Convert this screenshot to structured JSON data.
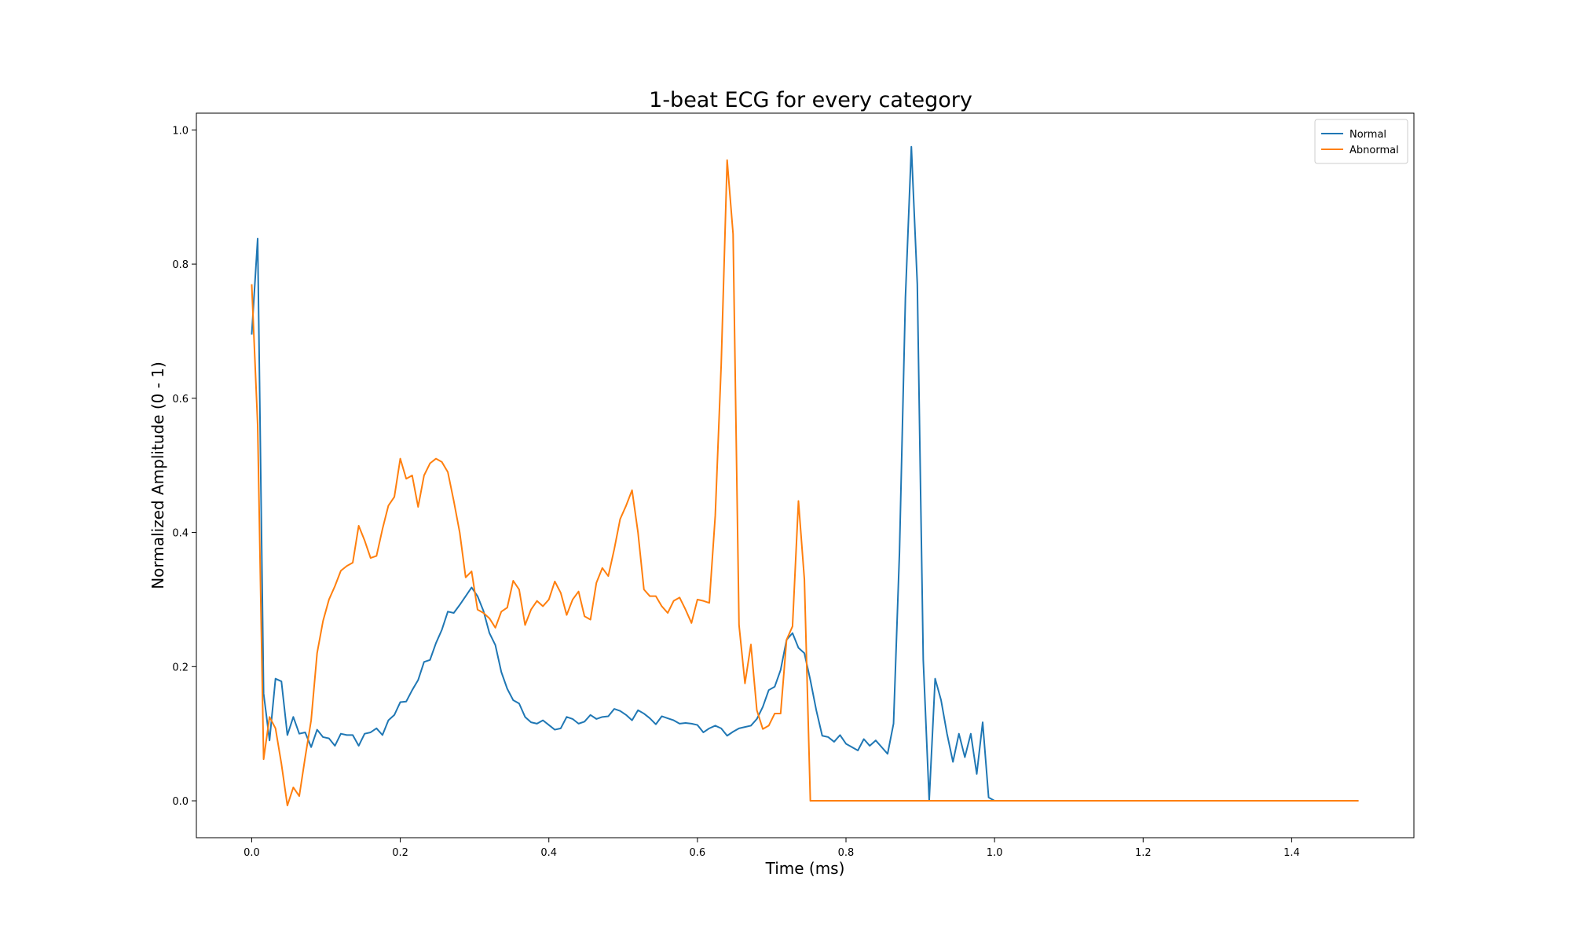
{
  "chart_data": {
    "type": "line",
    "title": "1-beat ECG for every category",
    "xlabel": "Time (ms)",
    "ylabel": "Normalized Amplitude (0 - 1)",
    "xlim": [
      -0.0745,
      1.5645
    ],
    "ylim": [
      -0.055,
      1.025
    ],
    "xticks": [
      0.0,
      0.2,
      0.4,
      0.6,
      0.8,
      1.0,
      1.2,
      1.4
    ],
    "xtick_labels": [
      "0.0",
      "0.2",
      "0.4",
      "0.6",
      "0.8",
      "1.0",
      "1.2",
      "1.4"
    ],
    "yticks": [
      0.0,
      0.2,
      0.4,
      0.6,
      0.8,
      1.0
    ],
    "ytick_labels": [
      "0.0",
      "0.2",
      "0.4",
      "0.6",
      "0.8",
      "1.0"
    ],
    "grid": false,
    "legend_position": "top-right",
    "series": [
      {
        "name": "Normal",
        "color": "#1f77b4",
        "points": [
          [
            0.0,
            0.695
          ],
          [
            0.008,
            0.838
          ],
          [
            0.016,
            0.16
          ],
          [
            0.024,
            0.09
          ],
          [
            0.032,
            0.182
          ],
          [
            0.04,
            0.178
          ],
          [
            0.048,
            0.098
          ],
          [
            0.056,
            0.125
          ],
          [
            0.064,
            0.1
          ],
          [
            0.072,
            0.102
          ],
          [
            0.08,
            0.08
          ],
          [
            0.088,
            0.106
          ],
          [
            0.096,
            0.095
          ],
          [
            0.104,
            0.093
          ],
          [
            0.112,
            0.082
          ],
          [
            0.12,
            0.1
          ],
          [
            0.128,
            0.098
          ],
          [
            0.136,
            0.098
          ],
          [
            0.144,
            0.082
          ],
          [
            0.152,
            0.1
          ],
          [
            0.16,
            0.102
          ],
          [
            0.168,
            0.108
          ],
          [
            0.176,
            0.098
          ],
          [
            0.184,
            0.12
          ],
          [
            0.192,
            0.128
          ],
          [
            0.2,
            0.147
          ],
          [
            0.208,
            0.148
          ],
          [
            0.216,
            0.165
          ],
          [
            0.224,
            0.18
          ],
          [
            0.232,
            0.207
          ],
          [
            0.24,
            0.21
          ],
          [
            0.248,
            0.235
          ],
          [
            0.256,
            0.255
          ],
          [
            0.264,
            0.282
          ],
          [
            0.272,
            0.28
          ],
          [
            0.28,
            0.292
          ],
          [
            0.288,
            0.305
          ],
          [
            0.296,
            0.318
          ],
          [
            0.304,
            0.305
          ],
          [
            0.312,
            0.283
          ],
          [
            0.32,
            0.25
          ],
          [
            0.328,
            0.232
          ],
          [
            0.336,
            0.192
          ],
          [
            0.344,
            0.167
          ],
          [
            0.352,
            0.15
          ],
          [
            0.36,
            0.145
          ],
          [
            0.368,
            0.125
          ],
          [
            0.376,
            0.117
          ],
          [
            0.384,
            0.115
          ],
          [
            0.392,
            0.12
          ],
          [
            0.4,
            0.113
          ],
          [
            0.408,
            0.106
          ],
          [
            0.416,
            0.108
          ],
          [
            0.424,
            0.125
          ],
          [
            0.432,
            0.122
          ],
          [
            0.44,
            0.115
          ],
          [
            0.448,
            0.118
          ],
          [
            0.456,
            0.128
          ],
          [
            0.464,
            0.122
          ],
          [
            0.472,
            0.125
          ],
          [
            0.48,
            0.126
          ],
          [
            0.488,
            0.137
          ],
          [
            0.496,
            0.134
          ],
          [
            0.504,
            0.128
          ],
          [
            0.512,
            0.12
          ],
          [
            0.52,
            0.135
          ],
          [
            0.528,
            0.13
          ],
          [
            0.536,
            0.123
          ],
          [
            0.544,
            0.114
          ],
          [
            0.552,
            0.126
          ],
          [
            0.56,
            0.123
          ],
          [
            0.568,
            0.12
          ],
          [
            0.576,
            0.115
          ],
          [
            0.584,
            0.116
          ],
          [
            0.592,
            0.115
          ],
          [
            0.6,
            0.113
          ],
          [
            0.608,
            0.102
          ],
          [
            0.616,
            0.108
          ],
          [
            0.624,
            0.112
          ],
          [
            0.632,
            0.108
          ],
          [
            0.64,
            0.097
          ],
          [
            0.648,
            0.103
          ],
          [
            0.656,
            0.108
          ],
          [
            0.664,
            0.11
          ],
          [
            0.672,
            0.112
          ],
          [
            0.68,
            0.122
          ],
          [
            0.688,
            0.14
          ],
          [
            0.696,
            0.165
          ],
          [
            0.704,
            0.17
          ],
          [
            0.712,
            0.195
          ],
          [
            0.72,
            0.24
          ],
          [
            0.728,
            0.25
          ],
          [
            0.736,
            0.228
          ],
          [
            0.744,
            0.22
          ],
          [
            0.752,
            0.18
          ],
          [
            0.76,
            0.135
          ],
          [
            0.768,
            0.097
          ],
          [
            0.776,
            0.095
          ],
          [
            0.784,
            0.088
          ],
          [
            0.792,
            0.098
          ],
          [
            0.8,
            0.085
          ],
          [
            0.808,
            0.08
          ],
          [
            0.816,
            0.075
          ],
          [
            0.824,
            0.092
          ],
          [
            0.832,
            0.082
          ],
          [
            0.84,
            0.09
          ],
          [
            0.848,
            0.08
          ],
          [
            0.856,
            0.07
          ],
          [
            0.864,
            0.115
          ],
          [
            0.872,
            0.37
          ],
          [
            0.88,
            0.75
          ],
          [
            0.888,
            0.975
          ],
          [
            0.896,
            0.77
          ],
          [
            0.904,
            0.21
          ],
          [
            0.912,
            0.0
          ],
          [
            0.92,
            0.182
          ],
          [
            0.928,
            0.15
          ],
          [
            0.936,
            0.1
          ],
          [
            0.944,
            0.058
          ],
          [
            0.952,
            0.1
          ],
          [
            0.96,
            0.065
          ],
          [
            0.968,
            0.1
          ],
          [
            0.976,
            0.04
          ],
          [
            0.984,
            0.117
          ],
          [
            0.992,
            0.005
          ],
          [
            1.0,
            0.0
          ],
          [
            1.1,
            0.0
          ],
          [
            1.2,
            0.0
          ],
          [
            1.3,
            0.0
          ],
          [
            1.4,
            0.0
          ],
          [
            1.49,
            0.0
          ]
        ]
      },
      {
        "name": "Abnormal",
        "color": "#ff7f0e",
        "points": [
          [
            0.0,
            0.77
          ],
          [
            0.008,
            0.56
          ],
          [
            0.016,
            0.062
          ],
          [
            0.024,
            0.125
          ],
          [
            0.032,
            0.108
          ],
          [
            0.04,
            0.055
          ],
          [
            0.048,
            -0.007
          ],
          [
            0.056,
            0.02
          ],
          [
            0.064,
            0.007
          ],
          [
            0.072,
            0.065
          ],
          [
            0.08,
            0.12
          ],
          [
            0.088,
            0.22
          ],
          [
            0.096,
            0.268
          ],
          [
            0.104,
            0.3
          ],
          [
            0.112,
            0.32
          ],
          [
            0.12,
            0.343
          ],
          [
            0.128,
            0.35
          ],
          [
            0.136,
            0.355
          ],
          [
            0.144,
            0.41
          ],
          [
            0.152,
            0.388
          ],
          [
            0.16,
            0.362
          ],
          [
            0.168,
            0.365
          ],
          [
            0.176,
            0.405
          ],
          [
            0.184,
            0.44
          ],
          [
            0.192,
            0.453
          ],
          [
            0.2,
            0.51
          ],
          [
            0.208,
            0.48
          ],
          [
            0.216,
            0.485
          ],
          [
            0.224,
            0.438
          ],
          [
            0.232,
            0.485
          ],
          [
            0.24,
            0.503
          ],
          [
            0.248,
            0.51
          ],
          [
            0.256,
            0.505
          ],
          [
            0.264,
            0.49
          ],
          [
            0.272,
            0.447
          ],
          [
            0.28,
            0.4
          ],
          [
            0.288,
            0.333
          ],
          [
            0.296,
            0.342
          ],
          [
            0.304,
            0.285
          ],
          [
            0.312,
            0.28
          ],
          [
            0.32,
            0.272
          ],
          [
            0.328,
            0.258
          ],
          [
            0.336,
            0.282
          ],
          [
            0.344,
            0.288
          ],
          [
            0.352,
            0.328
          ],
          [
            0.36,
            0.315
          ],
          [
            0.368,
            0.262
          ],
          [
            0.376,
            0.285
          ],
          [
            0.384,
            0.298
          ],
          [
            0.392,
            0.29
          ],
          [
            0.4,
            0.3
          ],
          [
            0.408,
            0.327
          ],
          [
            0.416,
            0.31
          ],
          [
            0.424,
            0.277
          ],
          [
            0.432,
            0.3
          ],
          [
            0.44,
            0.312
          ],
          [
            0.448,
            0.275
          ],
          [
            0.456,
            0.27
          ],
          [
            0.464,
            0.325
          ],
          [
            0.472,
            0.347
          ],
          [
            0.48,
            0.335
          ],
          [
            0.488,
            0.375
          ],
          [
            0.496,
            0.42
          ],
          [
            0.504,
            0.44
          ],
          [
            0.512,
            0.463
          ],
          [
            0.52,
            0.4
          ],
          [
            0.528,
            0.315
          ],
          [
            0.536,
            0.305
          ],
          [
            0.544,
            0.305
          ],
          [
            0.552,
            0.29
          ],
          [
            0.56,
            0.28
          ],
          [
            0.568,
            0.298
          ],
          [
            0.576,
            0.303
          ],
          [
            0.584,
            0.285
          ],
          [
            0.592,
            0.265
          ],
          [
            0.6,
            0.3
          ],
          [
            0.608,
            0.298
          ],
          [
            0.616,
            0.295
          ],
          [
            0.624,
            0.425
          ],
          [
            0.632,
            0.65
          ],
          [
            0.64,
            0.955
          ],
          [
            0.648,
            0.845
          ],
          [
            0.656,
            0.262
          ],
          [
            0.664,
            0.175
          ],
          [
            0.672,
            0.233
          ],
          [
            0.68,
            0.135
          ],
          [
            0.688,
            0.107
          ],
          [
            0.696,
            0.112
          ],
          [
            0.704,
            0.13
          ],
          [
            0.712,
            0.13
          ],
          [
            0.72,
            0.24
          ],
          [
            0.728,
            0.26
          ],
          [
            0.736,
            0.447
          ],
          [
            0.744,
            0.33
          ],
          [
            0.752,
            0.0
          ],
          [
            0.8,
            0.0
          ],
          [
            0.9,
            0.0
          ],
          [
            1.0,
            0.0
          ],
          [
            1.1,
            0.0
          ],
          [
            1.2,
            0.0
          ],
          [
            1.3,
            0.0
          ],
          [
            1.4,
            0.0
          ],
          [
            1.49,
            0.0
          ]
        ]
      }
    ]
  }
}
